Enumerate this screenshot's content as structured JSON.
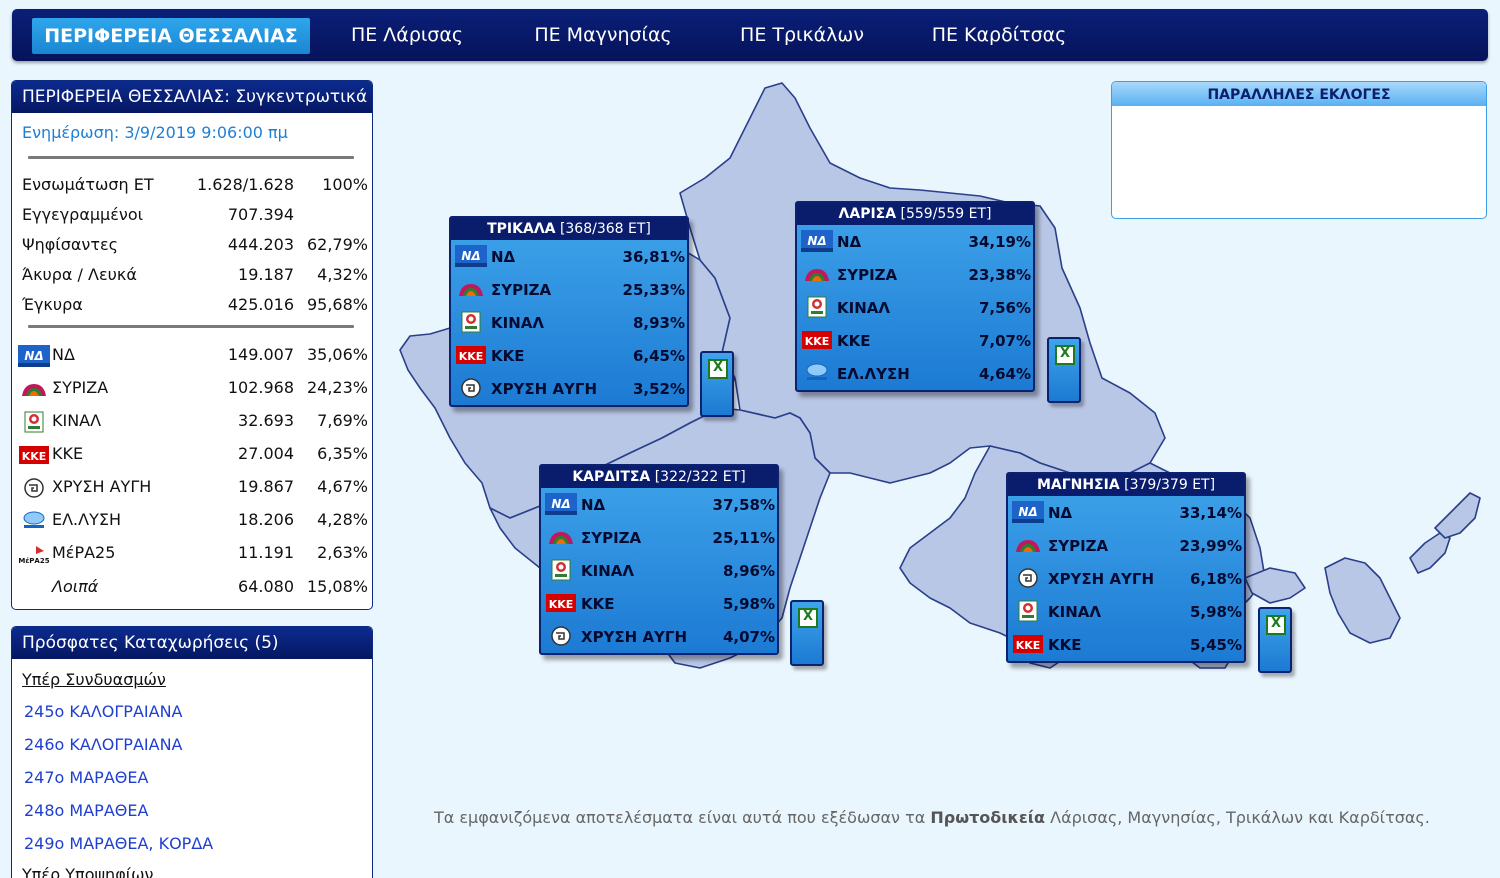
{
  "nav": {
    "active": "ΠΕΡΙΦΕΡΕΙΑ ΘΕΣΣΑΛΙΑΣ",
    "items": [
      "ΠΕ Λάρισας",
      "ΠΕ Μαγνησίας",
      "ΠΕ Τρικάλων",
      "ΠΕ Καρδίτσας"
    ]
  },
  "summary": {
    "title": "ΠΕΡΙΦΕΡΕΙΑ ΘΕΣΣΑΛΙΑΣ: Συγκεντρωτικά",
    "updated": "Ενημέρωση: 3/9/2019 9:06:00 πμ",
    "stats": [
      {
        "label": "Ενσωμάτωση ΕΤ",
        "value": "1.628/1.628",
        "pct": "100%"
      },
      {
        "label": "Εγγεγραμμένοι",
        "value": "707.394",
        "pct": ""
      },
      {
        "label": "Ψηφίσαντες",
        "value": "444.203",
        "pct": "62,79%"
      },
      {
        "label": "Άκυρα / Λευκά",
        "value": "19.187",
        "pct": "4,32%"
      },
      {
        "label": "Έγκυρα",
        "value": "425.016",
        "pct": "95,68%"
      }
    ],
    "parties": [
      {
        "logo": "nd",
        "name": "ΝΔ",
        "votes": "149.007",
        "pct": "35,06%"
      },
      {
        "logo": "syriza",
        "name": "ΣΥΡΙΖΑ",
        "votes": "102.968",
        "pct": "24,23%"
      },
      {
        "logo": "kinal",
        "name": "ΚΙΝΑΛ",
        "votes": "32.693",
        "pct": "7,69%"
      },
      {
        "logo": "kke",
        "name": "ΚΚΕ",
        "votes": "27.004",
        "pct": "6,35%"
      },
      {
        "logo": "xa",
        "name": "ΧΡΥΣΗ ΑΥΓΗ",
        "votes": "19.867",
        "pct": "4,67%"
      },
      {
        "logo": "elysi",
        "name": "ΕΛ.ΛΥΣΗ",
        "votes": "18.206",
        "pct": "4,28%"
      },
      {
        "logo": "mera25",
        "name": "ΜέΡΑ25",
        "votes": "11.191",
        "pct": "2,63%"
      }
    ],
    "others": {
      "name": "Λοιπά",
      "votes": "64.080",
      "pct": "15,08%"
    }
  },
  "recent": {
    "title": "Πρόσφατες Καταχωρήσεις (5)",
    "sub1": "Υπέρ Συνδυασμών",
    "items": [
      "245ο ΚΑΛΟΓΡΑΙΑΝΑ",
      "246ο ΚΑΛΟΓΡΑΙΑΝΑ",
      "247ο ΜΑΡΑΘΕΑ",
      "248ο ΜΑΡΑΘΕΑ",
      "249ο ΜΑΡΑΘΕΑ, ΚΟΡΔΑ"
    ],
    "sub2": "Υπέρ Υποψηφίων"
  },
  "regions": [
    {
      "name": "ΤΡΙΚΑΛΑ",
      "et": "[368/368 ΕΤ]",
      "rows": [
        {
          "logo": "nd",
          "name": "ΝΔ",
          "pct": "36,81%"
        },
        {
          "logo": "syriza",
          "name": "ΣΥΡΙΖΑ",
          "pct": "25,33%"
        },
        {
          "logo": "kinal",
          "name": "ΚΙΝΑΛ",
          "pct": "8,93%"
        },
        {
          "logo": "kke",
          "name": "ΚΚΕ",
          "pct": "6,45%"
        },
        {
          "logo": "xa",
          "name": "ΧΡΥΣΗ ΑΥΓΗ",
          "pct": "3,52%"
        }
      ]
    },
    {
      "name": "ΛΑΡΙΣΑ",
      "et": "[559/559 ΕΤ]",
      "rows": [
        {
          "logo": "nd",
          "name": "ΝΔ",
          "pct": "34,19%"
        },
        {
          "logo": "syriza",
          "name": "ΣΥΡΙΖΑ",
          "pct": "23,38%"
        },
        {
          "logo": "kinal",
          "name": "ΚΙΝΑΛ",
          "pct": "7,56%"
        },
        {
          "logo": "kke",
          "name": "ΚΚΕ",
          "pct": "7,07%"
        },
        {
          "logo": "elysi",
          "name": "ΕΛ.ΛΥΣΗ",
          "pct": "4,64%"
        }
      ]
    },
    {
      "name": "ΚΑΡΔΙΤΣΑ",
      "et": "[322/322 ΕΤ]",
      "rows": [
        {
          "logo": "nd",
          "name": "ΝΔ",
          "pct": "37,58%"
        },
        {
          "logo": "syriza",
          "name": "ΣΥΡΙΖΑ",
          "pct": "25,11%"
        },
        {
          "logo": "kinal",
          "name": "ΚΙΝΑΛ",
          "pct": "8,96%"
        },
        {
          "logo": "kke",
          "name": "ΚΚΕ",
          "pct": "5,98%"
        },
        {
          "logo": "xa",
          "name": "ΧΡΥΣΗ ΑΥΓΗ",
          "pct": "4,07%"
        }
      ]
    },
    {
      "name": "ΜΑΓΝΗΣΙΑ",
      "et": "[379/379 ΕΤ]",
      "rows": [
        {
          "logo": "nd",
          "name": "ΝΔ",
          "pct": "33,14%"
        },
        {
          "logo": "syriza",
          "name": "ΣΥΡΙΖΑ",
          "pct": "23,99%"
        },
        {
          "logo": "xa",
          "name": "ΧΡΥΣΗ ΑΥΓΗ",
          "pct": "6,18%"
        },
        {
          "logo": "kinal",
          "name": "ΚΙΝΑΛ",
          "pct": "5,98%"
        },
        {
          "logo": "kke",
          "name": "ΚΚΕ",
          "pct": "5,45%"
        }
      ]
    }
  ],
  "parallel": {
    "title": "ΠΑΡΑΛΛΗΛΕΣ ΕΚΛΟΓΕΣ"
  },
  "footnote": {
    "pre": "Τα εμφανιζόμενα αποτελέσματα είναι αυτά που εξέδωσαν τα ",
    "bold": "Πρωτοδικεία",
    "post": " Λάρισας, Μαγνησίας, Τρικάλων και Καρδίτσας."
  },
  "colors": {
    "nav": "#0a1f78",
    "accent": "#1e86d6",
    "map": "#b9c7e6"
  }
}
